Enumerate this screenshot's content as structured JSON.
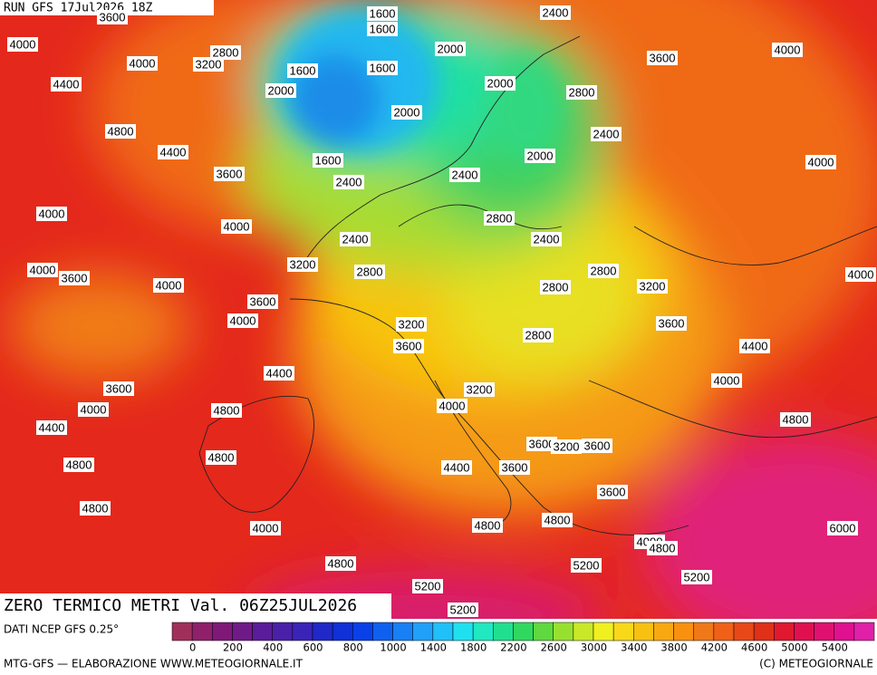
{
  "header": {
    "run": "RUN GFS 17Jul2026 18Z"
  },
  "map": {
    "contour_labels": [
      "3600",
      "1600",
      "1600",
      "2400",
      "2000",
      "1600",
      "1600",
      "2800",
      "3200",
      "4000",
      "4000",
      "3600",
      "4000",
      "4400",
      "2000",
      "2000",
      "2800",
      "2000",
      "4800",
      "2400",
      "4400",
      "1600",
      "2000",
      "4000",
      "3600",
      "2400",
      "2400",
      "4000",
      "2800",
      "4000",
      "2400",
      "2400",
      "3200",
      "2800",
      "2800",
      "4000",
      "3600",
      "4000",
      "2800",
      "3200",
      "4000",
      "3600",
      "4000",
      "3200",
      "3600",
      "3600",
      "2800",
      "4400",
      "4400",
      "3600",
      "4000",
      "3200",
      "4000",
      "4800",
      "4000",
      "4800",
      "4400",
      "3600",
      "3200",
      "3600",
      "4800",
      "4800",
      "4400",
      "3600",
      "3600",
      "4800",
      "4800",
      "4000",
      "4800",
      "6000",
      "4000",
      "4800",
      "4800",
      "5200",
      "5200",
      "5200",
      "5200"
    ]
  },
  "title": "ZERO TERMICO METRI Val. 06Z25JUL2026",
  "colorbar": {
    "source": "DATI NCEP GFS 0.25°",
    "labels": [
      "0",
      "200",
      "400",
      "600",
      "800",
      "1000",
      "1400",
      "1800",
      "2200",
      "2600",
      "3000",
      "3400",
      "3800",
      "4200",
      "4600",
      "5000",
      "5400"
    ]
  },
  "footer": {
    "left": "MTG-GFS — ELABORAZIONE WWW.METEOGIORNALE.IT",
    "right": "(C) METEOGIORNALE"
  }
}
